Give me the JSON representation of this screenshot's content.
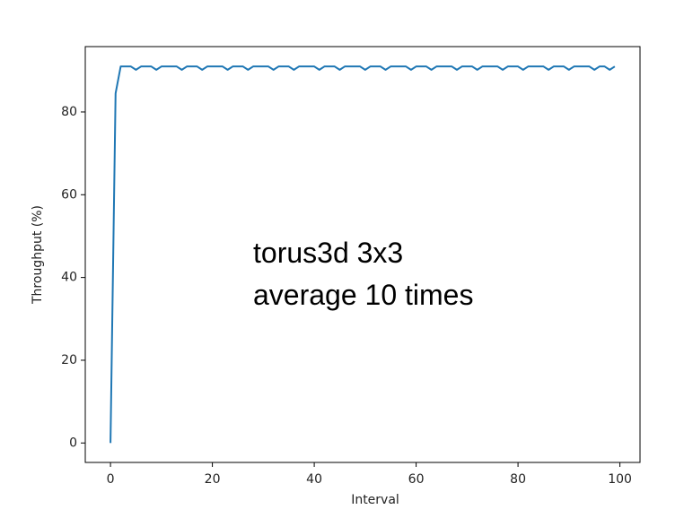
{
  "chart_data": {
    "type": "line",
    "xlabel": "Interval",
    "ylabel": "Throughput (%)",
    "annotations": [
      "torus3d 3x3",
      "average 10 times"
    ],
    "x": [
      0,
      1,
      2,
      3,
      4,
      5,
      6,
      7,
      8,
      9,
      10,
      11,
      12,
      13,
      14,
      15,
      16,
      17,
      18,
      19,
      20,
      21,
      22,
      23,
      24,
      25,
      26,
      27,
      28,
      29,
      30,
      31,
      32,
      33,
      34,
      35,
      36,
      37,
      38,
      39,
      40,
      41,
      42,
      43,
      44,
      45,
      46,
      47,
      48,
      49,
      50,
      51,
      52,
      53,
      54,
      55,
      56,
      57,
      58,
      59,
      60,
      61,
      62,
      63,
      64,
      65,
      66,
      67,
      68,
      69,
      70,
      71,
      72,
      73,
      74,
      75,
      76,
      77,
      78,
      79,
      80,
      81,
      82,
      83,
      84,
      85,
      86,
      87,
      88,
      89,
      90,
      91,
      92,
      93,
      94,
      95,
      96,
      97,
      98,
      99
    ],
    "series": [
      {
        "color": "#1f77b4",
        "values": [
          0,
          84.5,
          91,
          91,
          91,
          90.2,
          91,
          91,
          91,
          90.2,
          91,
          91,
          91,
          91,
          90.2,
          91,
          91,
          91,
          90.2,
          91,
          91,
          91,
          91,
          90.2,
          91,
          91,
          91,
          90.2,
          91,
          91,
          91,
          91,
          90.2,
          91,
          91,
          91,
          90.2,
          91,
          91,
          91,
          91,
          90.2,
          91,
          91,
          91,
          90.2,
          91,
          91,
          91,
          91,
          90.2,
          91,
          91,
          91,
          90.2,
          91,
          91,
          91,
          91,
          90.2,
          91,
          91,
          91,
          90.2,
          91,
          91,
          91,
          91,
          90.2,
          91,
          91,
          91,
          90.2,
          91,
          91,
          91,
          91,
          90.2,
          91,
          91,
          91,
          90.2,
          91,
          91,
          91,
          91,
          90.2,
          91,
          91,
          91,
          90.2,
          91,
          91,
          91,
          91,
          90.2,
          91,
          91,
          90.2,
          91
        ]
      }
    ],
    "xlim": [
      -4.95,
      103.95
    ],
    "xticks": [
      0,
      20,
      40,
      60,
      80,
      100
    ],
    "ylim": [
      -4.7,
      95.8
    ],
    "yticks": [
      0,
      20,
      40,
      60,
      80
    ],
    "grid": false
  }
}
